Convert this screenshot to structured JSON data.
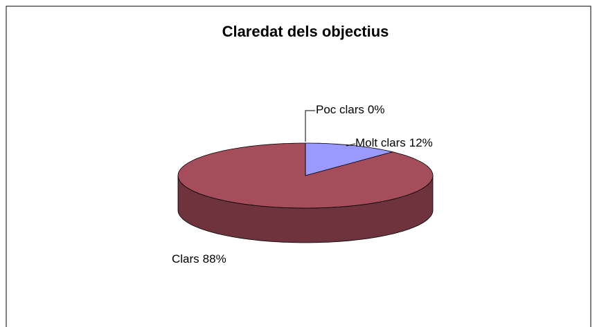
{
  "chart_data": {
    "type": "pie",
    "title": "Claredat dels objectius",
    "categories": [
      "Molt clars",
      "Clars",
      "Poc clars"
    ],
    "values": [
      12,
      88,
      0
    ],
    "value_labels": [
      "12%",
      "88%",
      "0%"
    ],
    "colors": [
      "#9999ff",
      "#a64d5c",
      "#ffffcc"
    ]
  }
}
